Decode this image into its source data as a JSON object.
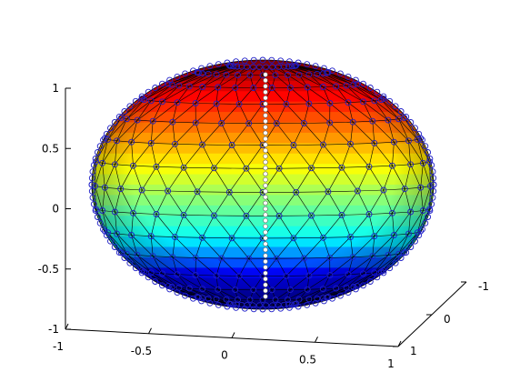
{
  "chart_data": {
    "type": "surface3d",
    "title": "",
    "xlabel": "",
    "ylabel": "",
    "zlabel": "",
    "surface": "ellipsoid (sphere mesh scaled in z), colored by z with jet colormap, triangulated faces with circle vertex markers",
    "colormap": "jet",
    "colormap_colors": [
      "#00008f",
      "#0000ff",
      "#00ffff",
      "#80ff80",
      "#ffff00",
      "#ff8000",
      "#ff0000",
      "#800000"
    ],
    "marker_color": "#1f1fc8",
    "xlim": [
      -1,
      1
    ],
    "ylim": [
      -1,
      1
    ],
    "zlim": [
      -1,
      1
    ],
    "x_ticks": [
      "-1",
      "-0.5",
      "0",
      "0.5",
      "1"
    ],
    "y_ticks": [
      "-1",
      "0",
      "1"
    ],
    "z_ticks": [
      "1",
      "0.5",
      "0",
      "-0.5",
      "-1"
    ],
    "z_values": [
      1,
      0.5,
      0,
      -0.5,
      -1
    ],
    "grid": false,
    "legend": "none"
  }
}
